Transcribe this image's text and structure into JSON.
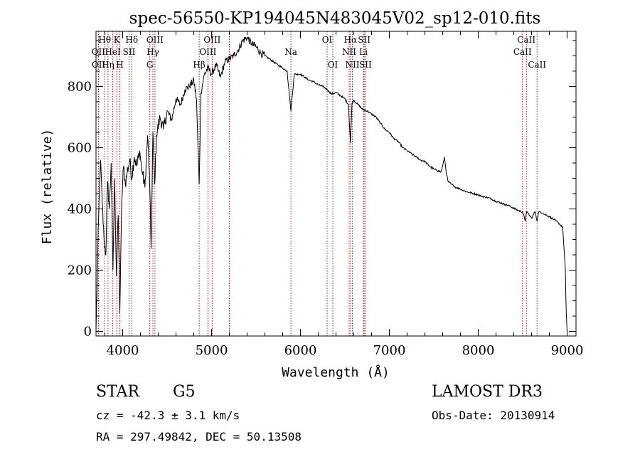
{
  "chart_data": {
    "type": "line",
    "title": "spec-56550-KP194045N483045V02_sp12-010.fits",
    "xlabel": "Wavelength (Å)",
    "ylabel": "Flux (relative)",
    "xlim": [
      3700,
      9100
    ],
    "ylim": [
      -15,
      980
    ],
    "xticks": [
      4000,
      5000,
      6000,
      7000,
      8000,
      9000
    ],
    "yticks": [
      0,
      200,
      400,
      600,
      800
    ],
    "series": [
      {
        "name": "flux",
        "x": [
          3700,
          3710,
          3730,
          3750,
          3770,
          3790,
          3810,
          3830,
          3850,
          3870,
          3890,
          3910,
          3930,
          3950,
          3968,
          3990,
          4010,
          4030,
          4050,
          4080,
          4101,
          4130,
          4160,
          4190,
          4220,
          4250,
          4280,
          4300,
          4320,
          4340,
          4360,
          4380,
          4420,
          4460,
          4500,
          4550,
          4600,
          4650,
          4700,
          4750,
          4800,
          4830,
          4861,
          4880,
          4920,
          4960,
          5000,
          5050,
          5100,
          5150,
          5200,
          5250,
          5300,
          5350,
          5400,
          5450,
          5500,
          5550,
          5600,
          5650,
          5700,
          5750,
          5800,
          5850,
          5893,
          5930,
          6000,
          6050,
          6100,
          6150,
          6200,
          6250,
          6300,
          6350,
          6400,
          6450,
          6500,
          6540,
          6563,
          6580,
          6600,
          6650,
          6700,
          6750,
          6800,
          6850,
          6900,
          6950,
          7000,
          7050,
          7100,
          7150,
          7200,
          7250,
          7300,
          7350,
          7400,
          7450,
          7500,
          7550,
          7580,
          7600,
          7620,
          7640,
          7660,
          7700,
          7750,
          7800,
          7850,
          7900,
          7950,
          8000,
          8050,
          8100,
          8150,
          8200,
          8250,
          8300,
          8350,
          8400,
          8450,
          8500,
          8530,
          8542,
          8560,
          8600,
          8640,
          8662,
          8680,
          8700,
          8750,
          8800,
          8850,
          8900,
          8950,
          8980,
          8990,
          9000
        ],
        "y": [
          0,
          120,
          380,
          560,
          420,
          300,
          250,
          490,
          400,
          550,
          200,
          500,
          180,
          380,
          60,
          430,
          540,
          480,
          520,
          560,
          500,
          570,
          540,
          590,
          520,
          470,
          640,
          520,
          270,
          650,
          480,
          640,
          700,
          660,
          720,
          690,
          760,
          740,
          790,
          800,
          820,
          760,
          480,
          780,
          840,
          860,
          840,
          870,
          830,
          880,
          890,
          900,
          920,
          950,
          960,
          940,
          930,
          910,
          900,
          890,
          880,
          870,
          860,
          850,
          720,
          840,
          840,
          830,
          820,
          815,
          805,
          800,
          790,
          775,
          780,
          770,
          760,
          740,
          615,
          745,
          755,
          740,
          725,
          720,
          710,
          700,
          680,
          660,
          650,
          630,
          620,
          600,
          590,
          580,
          570,
          560,
          555,
          540,
          530,
          525,
          520,
          540,
          570,
          520,
          490,
          480,
          470,
          465,
          458,
          454,
          450,
          446,
          440,
          438,
          432,
          425,
          420,
          415,
          410,
          402,
          395,
          390,
          360,
          392,
          385,
          370,
          392,
          360,
          390,
          390,
          382,
          375,
          365,
          355,
          340,
          200,
          60,
          0
        ]
      }
    ],
    "spectral_lines": [
      {
        "label": "Hθ",
        "wavelength": 3798,
        "row": 0
      },
      {
        "label": "OII",
        "wavelength": 3727,
        "row": 1
      },
      {
        "label": "OII",
        "wavelength": 3729,
        "row": 2
      },
      {
        "label": "Hη",
        "wavelength": 3835,
        "row": 2
      },
      {
        "label": "HeI",
        "wavelength": 3889,
        "row": 1
      },
      {
        "label": "K",
        "wavelength": 3934,
        "row": 0
      },
      {
        "label": "H",
        "wavelength": 3968,
        "row": 2
      },
      {
        "label": "Hδ",
        "wavelength": 4102,
        "row": 0
      },
      {
        "label": "SII",
        "wavelength": 4072,
        "row": 1
      },
      {
        "label": "OIII",
        "wavelength": 4363,
        "row": 0
      },
      {
        "label": "Hγ",
        "wavelength": 4340,
        "row": 1
      },
      {
        "label": "G",
        "wavelength": 4305,
        "row": 2
      },
      {
        "label": "OIII",
        "wavelength": 5007,
        "row": 0
      },
      {
        "label": "OIII",
        "wavelength": 4959,
        "row": 1
      },
      {
        "label": "Hβ",
        "wavelength": 4861,
        "row": 2
      },
      {
        "label": "",
        "wavelength": 5200,
        "row": -1
      },
      {
        "label": "Na",
        "wavelength": 5893,
        "row": 1
      },
      {
        "label": "OI",
        "wavelength": 6300,
        "row": 0
      },
      {
        "label": "OI",
        "wavelength": 6364,
        "row": 2
      },
      {
        "label": "Hα",
        "wavelength": 6563,
        "row": 0
      },
      {
        "label": "NII",
        "wavelength": 6548,
        "row": 1
      },
      {
        "label": "NII",
        "wavelength": 6584,
        "row": 2
      },
      {
        "label": "SII",
        "wavelength": 6717,
        "row": 0
      },
      {
        "label": "Li",
        "wavelength": 6708,
        "row": 1
      },
      {
        "label": "SII",
        "wavelength": 6731,
        "row": 2
      },
      {
        "label": "CaII",
        "wavelength": 8542,
        "row": 0
      },
      {
        "label": "CaII",
        "wavelength": 8498,
        "row": 1
      },
      {
        "label": "CaII",
        "wavelength": 8662,
        "row": 2
      }
    ]
  },
  "colors": {
    "line_marker": "#b22222",
    "axis": "#000000",
    "spectrum": "#000000"
  },
  "footer": {
    "class_label": "STAR",
    "subclass": "G5",
    "survey": "LAMOST DR3",
    "cz": "cz = -42.3 ± 3.1 km/s",
    "obs_date": "Obs-Date: 20130914",
    "coords": "RA = 297.49842, DEC =  50.13508"
  }
}
